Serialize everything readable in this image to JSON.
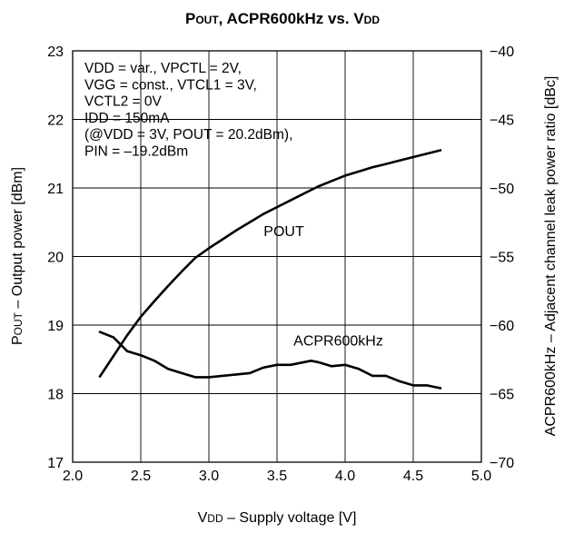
{
  "chart_data": {
    "type": "line",
    "title": {
      "main": "POUT, ACPR600kHz vs. VDD"
    },
    "xlabel": "VDD – Supply voltage [V]",
    "ylabel_left": "POUT – Output power [dBm]",
    "ylabel_right": "ACPR600kHz – Adjacent channel leak power ratio [dBc]",
    "xlim": [
      2.0,
      5.0
    ],
    "ylim_left": [
      17,
      23
    ],
    "ylim_right": [
      -70,
      -40
    ],
    "x_ticks": [
      "2.0",
      "2.5",
      "3.0",
      "3.5",
      "4.0",
      "4.5",
      "5.0"
    ],
    "y_ticks_left": [
      "23",
      "22",
      "21",
      "20",
      "19",
      "18",
      "17"
    ],
    "y_ticks_right": [
      "−40",
      "−45",
      "−50",
      "−55",
      "−60",
      "−65",
      "−70"
    ],
    "grid": true,
    "conditions": [
      "VDD = var., VPCTL = 2V,",
      "VGG = const., VTCL1 = 3V,",
      "VCTL2 = 0V",
      "IDD = 150mA",
      "(@VDD = 3V, POUT = 20.2dBm),",
      "PIN = –19.2dBm"
    ],
    "series": [
      {
        "name": "POUT",
        "axis": "left",
        "x": [
          2.2,
          2.3,
          2.4,
          2.5,
          2.6,
          2.7,
          2.8,
          2.9,
          3.0,
          3.1,
          3.2,
          3.3,
          3.4,
          3.5,
          3.6,
          3.7,
          3.8,
          3.9,
          4.0,
          4.1,
          4.2,
          4.3,
          4.4,
          4.5,
          4.6,
          4.7
        ],
        "values": [
          18.25,
          18.55,
          18.85,
          19.12,
          19.35,
          19.57,
          19.78,
          19.98,
          20.12,
          20.25,
          20.38,
          20.5,
          20.62,
          20.72,
          20.82,
          20.92,
          21.02,
          21.1,
          21.18,
          21.24,
          21.3,
          21.35,
          21.4,
          21.45,
          21.5,
          21.55
        ]
      },
      {
        "name": "ACPR600kHz",
        "axis": "right",
        "x": [
          2.2,
          2.3,
          2.4,
          2.5,
          2.6,
          2.7,
          2.8,
          2.9,
          3.0,
          3.1,
          3.2,
          3.3,
          3.4,
          3.5,
          3.6,
          3.7,
          3.75,
          3.8,
          3.9,
          4.0,
          4.1,
          4.2,
          4.3,
          4.4,
          4.5,
          4.6,
          4.7
        ],
        "values": [
          -60.5,
          -60.9,
          -61.9,
          -62.2,
          -62.6,
          -63.2,
          -63.5,
          -63.8,
          -63.8,
          -63.7,
          -63.6,
          -63.5,
          -63.1,
          -62.9,
          -62.9,
          -62.7,
          -62.6,
          -62.7,
          -63.0,
          -62.9,
          -63.2,
          -63.7,
          -63.7,
          -64.1,
          -64.4,
          -64.4,
          -64.6
        ]
      }
    ],
    "series_labels": [
      {
        "text": "POUT",
        "x": 3.55,
        "y_left": 20.3
      },
      {
        "text": "ACPR600kHz",
        "x": 3.95,
        "y_left": 18.7
      }
    ]
  }
}
